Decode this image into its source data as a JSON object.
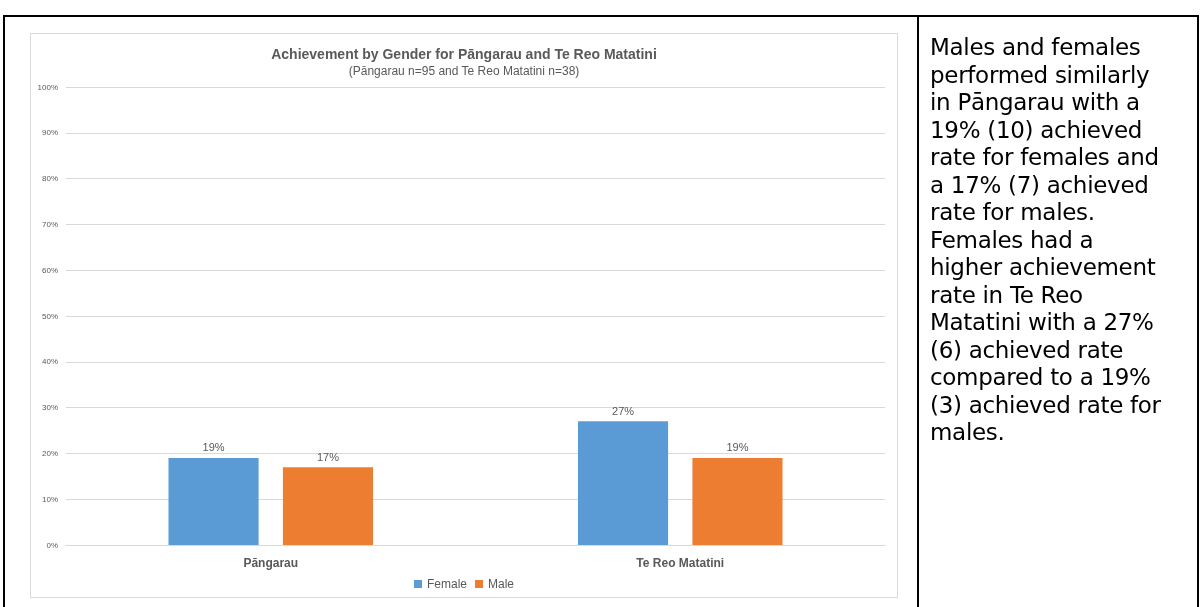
{
  "chart_data": {
    "type": "bar",
    "title": "Achievement by Gender for Pāngarau and Te Reo Matatini",
    "subtitle": "(Pāngarau n=95 and Te Reo Matatini n=38)",
    "categories": [
      "Pāngarau",
      "Te Reo Matatini"
    ],
    "series": [
      {
        "name": "Female",
        "color": "#5b9bd5",
        "values": [
          19,
          27
        ],
        "value_labels": [
          "19%",
          "27%"
        ]
      },
      {
        "name": "Male",
        "color": "#ed7d31",
        "values": [
          17,
          19
        ],
        "value_labels": [
          "17%",
          "19%"
        ]
      }
    ],
    "ylim": [
      0,
      100
    ],
    "yticks": [
      {
        "value": 0,
        "label": "0%"
      },
      {
        "value": 10,
        "label": "10%"
      },
      {
        "value": 20,
        "label": "20%"
      },
      {
        "value": 30,
        "label": "30%"
      },
      {
        "value": 40,
        "label": "40%"
      },
      {
        "value": 50,
        "label": "50%"
      },
      {
        "value": 60,
        "label": "60%"
      },
      {
        "value": 70,
        "label": "70%"
      },
      {
        "value": 80,
        "label": "80%"
      },
      {
        "value": 90,
        "label": "90%"
      },
      {
        "value": 100,
        "label": "100%"
      }
    ],
    "grid": "y",
    "legend": "bottom",
    "annotations": [
      "Males and females performed similarly in Pāngarau with a 19% (10) achieved rate for females and a 17% (7) achieved rate for males. Females had a higher achievement rate in Te Reo Matatini with a 27% (6) achieved rate compared to a 19% (3) achieved rate for males."
    ]
  }
}
